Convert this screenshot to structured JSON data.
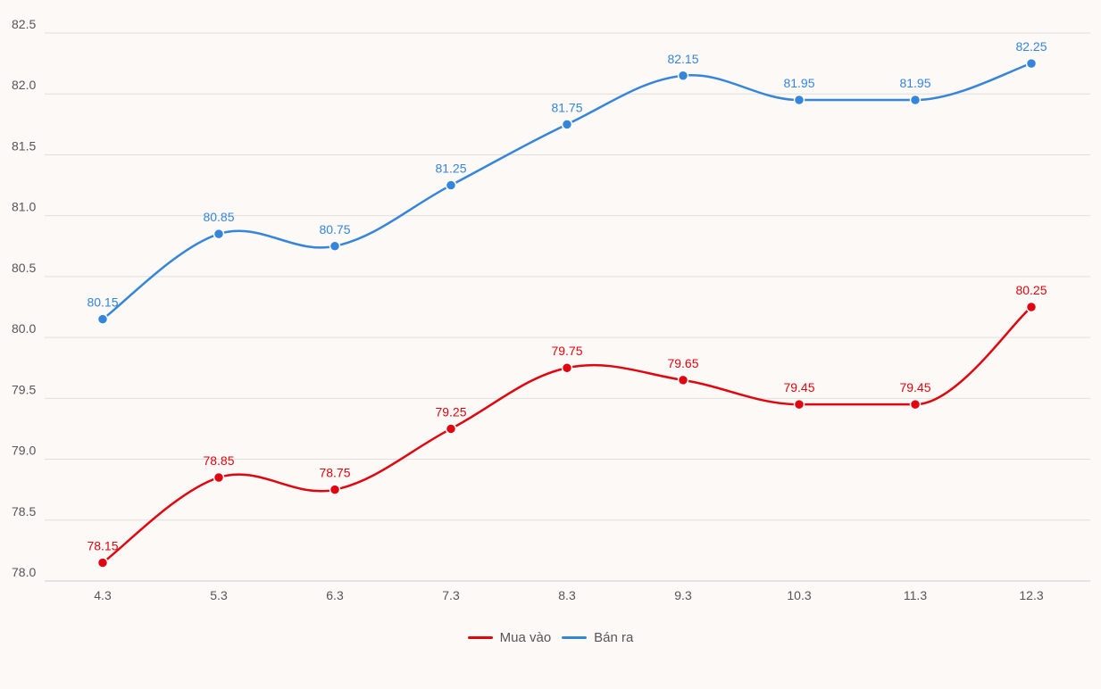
{
  "chart_data": {
    "type": "line",
    "title": "",
    "xlabel": "",
    "ylabel": "",
    "categories": [
      "4.3",
      "5.3",
      "6.3",
      "7.3",
      "8.3",
      "9.3",
      "10.3",
      "11.3",
      "12.3"
    ],
    "yticks": [
      "78.0",
      "78.5",
      "79.0",
      "79.5",
      "80.0",
      "80.5",
      "81.0",
      "81.5",
      "82.0",
      "82.5"
    ],
    "ylim": [
      78.0,
      82.5
    ],
    "grid": true,
    "legend_position": "bottom-center",
    "series": [
      {
        "name": "Mua vào",
        "color": "#e1050f",
        "values": [
          78.15,
          78.85,
          78.75,
          79.25,
          79.75,
          79.65,
          79.45,
          79.45,
          80.25
        ],
        "labels": [
          "78.15",
          "78.85",
          "78.75",
          "79.25",
          "79.75",
          "79.65",
          "79.45",
          "79.45",
          "80.25"
        ]
      },
      {
        "name": "Bán ra",
        "color": "#3585db",
        "values": [
          80.15,
          80.85,
          80.75,
          81.25,
          81.75,
          82.15,
          81.95,
          81.95,
          82.25
        ],
        "labels": [
          "80.15",
          "80.85",
          "80.75",
          "81.25",
          "81.75",
          "82.15",
          "81.95",
          "81.95",
          "82.25"
        ]
      }
    ]
  }
}
